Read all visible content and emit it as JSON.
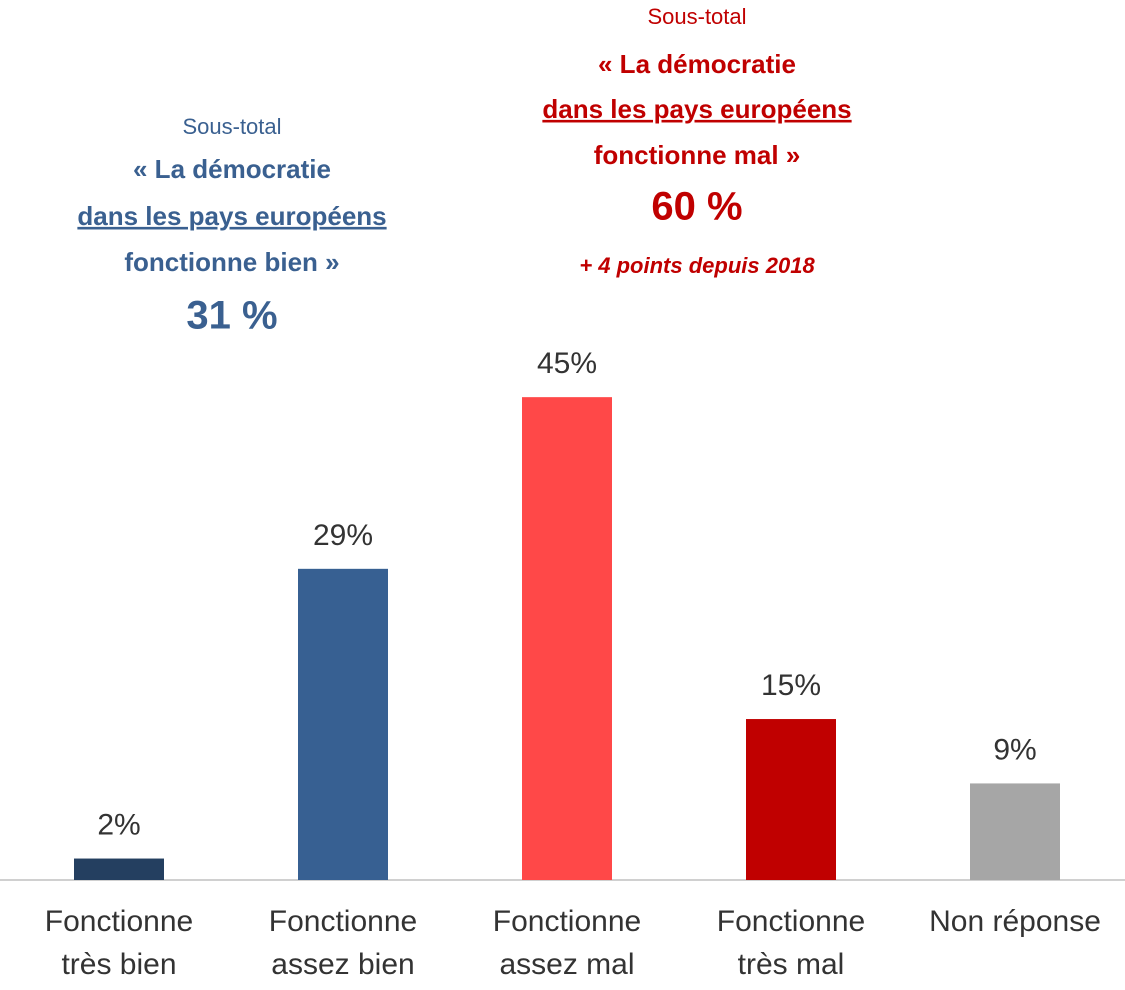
{
  "chart_data": {
    "type": "bar",
    "categories": [
      [
        "Fonctionne",
        "très bien"
      ],
      [
        "Fonctionne",
        "assez bien"
      ],
      [
        "Fonctionne",
        "assez mal"
      ],
      [
        "Fonctionne",
        "très mal"
      ],
      [
        "Non réponse"
      ]
    ],
    "values": [
      2,
      29,
      45,
      15,
      9
    ],
    "value_labels": [
      "2%",
      "29%",
      "45%",
      "15%",
      "9%"
    ],
    "colors": [
      "#243f60",
      "#376092",
      "#ff4848",
      "#c00000",
      "#a6a6a6"
    ],
    "ylim": [
      0,
      50
    ],
    "annotations": [
      {
        "color": "#3a6090",
        "lines": [
          "Sous-total",
          "« La démocratie",
          "dans les pays européens",
          "fonctionne bien »",
          "31 %"
        ]
      },
      {
        "color": "#c00000",
        "lines": [
          "Sous-total",
          "« La démocratie",
          "dans les pays européens",
          "fonctionne mal »",
          "60 %",
          "+ 4 points depuis 2018"
        ]
      }
    ]
  }
}
